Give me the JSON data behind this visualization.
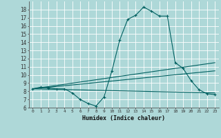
{
  "bg_color": "#aed8d8",
  "grid_color": "#ffffff",
  "line_color": "#006060",
  "xlabel": "Humidex (Indice chaleur)",
  "xlim": [
    -0.5,
    23.5
  ],
  "ylim": [
    6,
    19
  ],
  "xticks": [
    0,
    1,
    2,
    3,
    4,
    5,
    6,
    7,
    8,
    9,
    10,
    11,
    12,
    13,
    14,
    15,
    16,
    17,
    18,
    19,
    20,
    21,
    22,
    23
  ],
  "yticks": [
    6,
    7,
    8,
    9,
    10,
    11,
    12,
    13,
    14,
    15,
    16,
    17,
    18
  ],
  "curve1_x": [
    0,
    1,
    2,
    3,
    4,
    5,
    6,
    7,
    8,
    9,
    10,
    11,
    12,
    13,
    14,
    15,
    16,
    17,
    18,
    19,
    20,
    21,
    22,
    23
  ],
  "curve1_y": [
    8.3,
    8.5,
    8.4,
    8.3,
    8.3,
    7.8,
    7.0,
    6.5,
    6.2,
    7.3,
    10.5,
    14.3,
    16.8,
    17.3,
    18.3,
    17.8,
    17.2,
    17.2,
    11.5,
    10.8,
    9.3,
    8.2,
    7.7,
    7.6
  ],
  "curve2_x": [
    0,
    23
  ],
  "curve2_y": [
    8.3,
    11.5
  ],
  "curve3_x": [
    0,
    23
  ],
  "curve3_y": [
    8.3,
    10.5
  ],
  "curve4_x": [
    0,
    23
  ],
  "curve4_y": [
    8.3,
    7.8
  ]
}
